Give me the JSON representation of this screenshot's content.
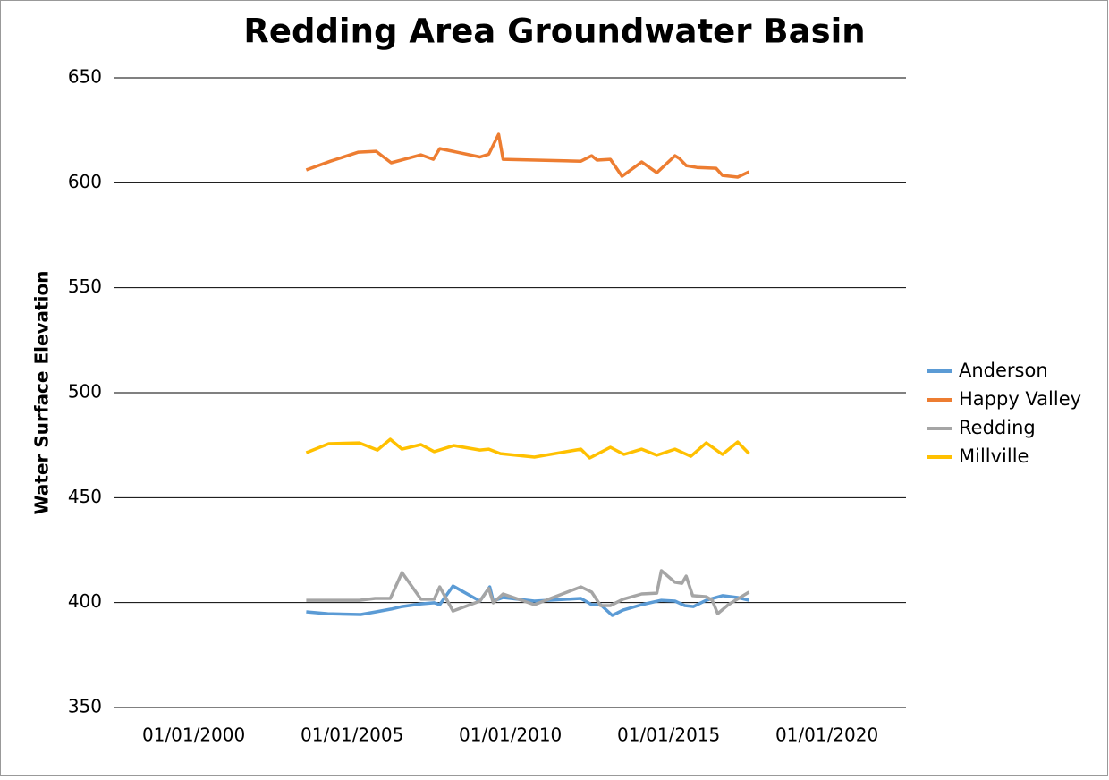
{
  "chart_data": {
    "type": "line",
    "title": "Redding Area Groundwater Basin",
    "y_label": "Water Surface Elevation",
    "xlim": [
      "1997-07-01",
      "2022-07-01"
    ],
    "xticks": [
      {
        "value": "2000-01-01",
        "label": "01/01/2000"
      },
      {
        "value": "2005-01-01",
        "label": "01/01/2005"
      },
      {
        "value": "2010-01-01",
        "label": "01/01/2010"
      },
      {
        "value": "2015-01-01",
        "label": "01/01/2015"
      },
      {
        "value": "2020-01-01",
        "label": "01/01/2020"
      }
    ],
    "ylim": [
      350,
      650
    ],
    "yticks": [
      350,
      400,
      450,
      500,
      550,
      600,
      650
    ],
    "grid": true,
    "legend": "right",
    "series": [
      {
        "name": "Anderson",
        "color": "#5b9bd5",
        "x": [
          "2003-07-22",
          "2004-03-27",
          "2005-04-10",
          "2005-10-05",
          "2006-03-28",
          "2006-07-31",
          "2007-03-07",
          "2007-08-07",
          "2007-10-09",
          "2008-03-10",
          "2009-01-15",
          "2009-05-08",
          "2009-06-17",
          "2009-10-09",
          "2010-10-05",
          "2012-03-25",
          "2012-07-27",
          "2012-11-07",
          "2013-03-22",
          "2013-07-24",
          "2014-02-24",
          "2014-10-09",
          "2015-03-15",
          "2015-07-05",
          "2015-10-15",
          "2016-03-10",
          "2016-09-13",
          "2017-03-07",
          "2017-07-16"
        ],
        "values": [
          395.6,
          394.7,
          394.3,
          395.6,
          396.9,
          398.1,
          399.4,
          399.9,
          399.0,
          407.9,
          400.7,
          407.5,
          400.7,
          402.4,
          400.7,
          402.0,
          399.0,
          399.0,
          393.9,
          396.4,
          399.0,
          401.1,
          400.7,
          398.6,
          398.1,
          401.1,
          403.3,
          402.4,
          401.1
        ]
      },
      {
        "name": "Happy Valley",
        "color": "#ed7d31",
        "x": [
          "2003-07-22",
          "2004-04-27",
          "2005-03-15",
          "2005-10-05",
          "2006-03-28",
          "2007-03-07",
          "2007-07-27",
          "2007-10-09",
          "2009-01-15",
          "2009-04-27",
          "2009-08-18",
          "2009-10-09",
          "2012-03-25",
          "2012-07-27",
          "2012-09-27",
          "2013-02-28",
          "2013-07-12",
          "2014-02-24",
          "2014-08-18",
          "2015-03-15",
          "2015-05-05",
          "2015-07-22",
          "2015-11-24",
          "2016-07-01",
          "2016-09-13",
          "2017-03-07",
          "2017-07-16"
        ],
        "values": [
          606.1,
          610.3,
          614.6,
          615.0,
          609.5,
          613.3,
          611.2,
          616.3,
          612.3,
          613.6,
          623.1,
          611.2,
          610.3,
          612.9,
          610.8,
          611.2,
          603.1,
          609.9,
          604.8,
          612.9,
          611.6,
          608.2,
          607.3,
          606.9,
          603.5,
          602.7,
          605.2
        ]
      },
      {
        "name": "Redding",
        "color": "#a5a5a5",
        "x": [
          "2003-07-22",
          "2005-03-25",
          "2005-09-25",
          "2006-03-18",
          "2006-07-31",
          "2007-03-07",
          "2007-08-07",
          "2007-10-09",
          "2008-03-10",
          "2009-01-15",
          "2009-04-27",
          "2009-06-17",
          "2009-10-09",
          "2010-10-05",
          "2012-03-25",
          "2012-07-27",
          "2012-11-07",
          "2013-02-28",
          "2013-07-24",
          "2014-02-24",
          "2014-08-18",
          "2014-10-09",
          "2015-03-15",
          "2015-06-03",
          "2015-07-22",
          "2015-10-05",
          "2016-03-10",
          "2016-05-18",
          "2016-07-20",
          "2016-11-20",
          "2017-07-16"
        ],
        "values": [
          401.1,
          401.1,
          402.0,
          402.0,
          414.3,
          401.6,
          401.6,
          407.5,
          396.0,
          400.7,
          406.7,
          399.9,
          404.1,
          399.0,
          407.5,
          405.0,
          398.6,
          398.6,
          401.6,
          404.1,
          404.5,
          415.2,
          409.7,
          409.2,
          412.6,
          403.3,
          402.8,
          401.1,
          394.7,
          399.0,
          405.0
        ]
      },
      {
        "name": "Millville",
        "color": "#ffc000",
        "x": [
          "2003-07-22",
          "2004-04-07",
          "2005-03-25",
          "2005-10-20",
          "2006-03-18",
          "2006-07-31",
          "2007-03-07",
          "2007-08-07",
          "2008-03-20",
          "2009-01-15",
          "2009-04-27",
          "2009-09-08",
          "2010-10-05",
          "2012-03-25",
          "2012-07-05",
          "2013-02-28",
          "2013-08-04",
          "2014-02-24",
          "2014-08-18",
          "2015-03-15",
          "2015-09-15",
          "2016-03-10",
          "2016-09-13",
          "2017-03-07",
          "2017-07-16"
        ],
        "values": [
          471.4,
          475.7,
          476.1,
          472.7,
          477.8,
          473.1,
          475.3,
          471.9,
          474.8,
          472.7,
          473.1,
          471.0,
          469.3,
          473.1,
          468.9,
          474.0,
          470.6,
          473.1,
          470.2,
          473.1,
          469.7,
          476.1,
          470.6,
          476.5,
          471.0
        ]
      }
    ]
  }
}
